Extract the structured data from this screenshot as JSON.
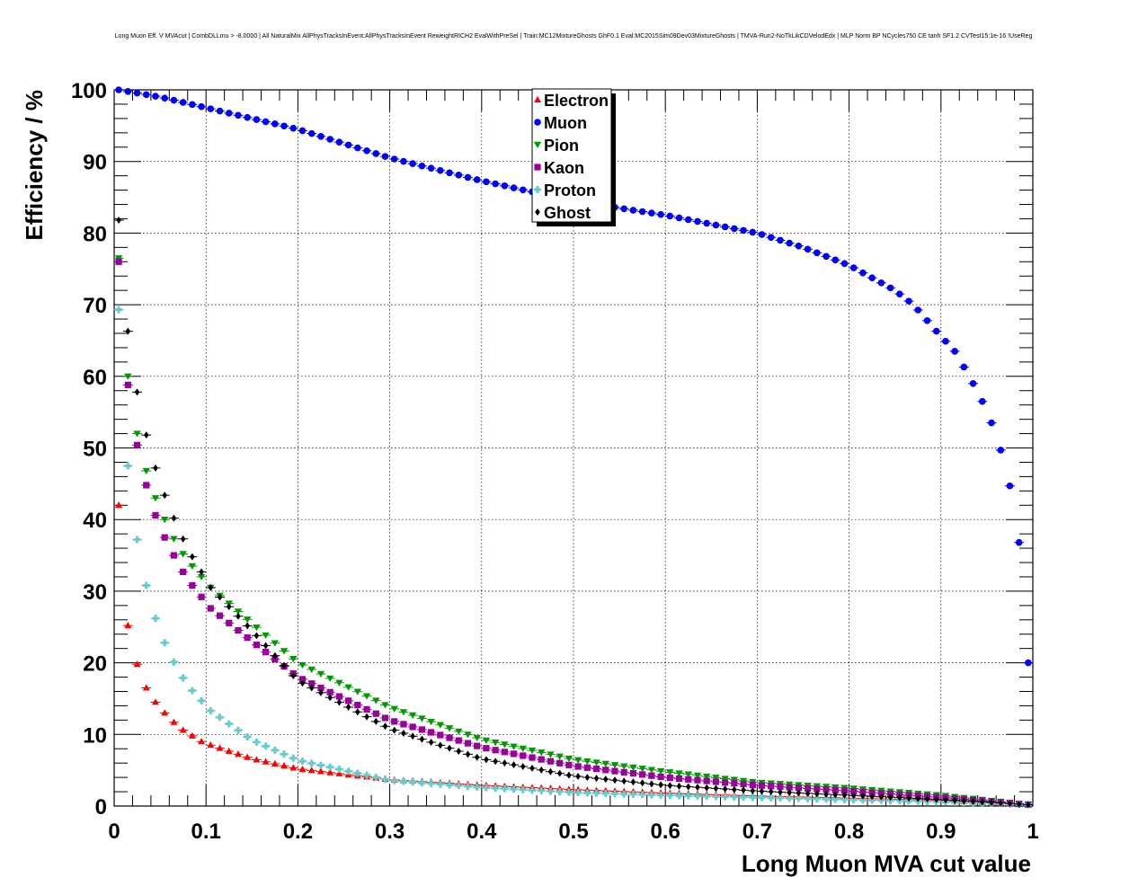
{
  "chart_data": {
    "type": "scatter",
    "title": "Long Muon Eff. V MVAcut | CombDLLmu > -8.0000 | All NaturalMix AllPhysTracksInEvent:AllPhysTracksInEvent ReweightRICH2 EvalWithPreSel | Train:MC12MixtureGhosts GhF0.1 Eval:MC2015Sim09Dev03MixtureGhosts | TMVA-Run2-NoTkLikCDVelodEdx | MLP Norm BP NCycles750 CE tanh SF1.2 CVTest15:1e-16 !UseReg",
    "xlabel": "Long Muon MVA cut value",
    "ylabel": "Efficiency / %",
    "xlim": [
      0,
      1
    ],
    "ylim": [
      0,
      100
    ],
    "x_ticks": [
      "0",
      "0.1",
      "0.2",
      "0.3",
      "0.4",
      "0.5",
      "0.6",
      "0.7",
      "0.8",
      "0.9",
      "1"
    ],
    "y_ticks": [
      "0",
      "10",
      "20",
      "30",
      "40",
      "50",
      "60",
      "70",
      "80",
      "90",
      "100"
    ],
    "grid": true,
    "legend_position": "top-center",
    "x_start": 0.005,
    "x_step": 0.01,
    "n_points": 100,
    "series": [
      {
        "name": "Electron",
        "marker": "triangle-up",
        "color": "#ff0000",
        "anchors": [
          [
            0.005,
            42
          ],
          [
            0.015,
            25.2
          ],
          [
            0.025,
            19.8
          ],
          [
            0.035,
            16.5
          ],
          [
            0.045,
            14.5
          ],
          [
            0.055,
            13
          ],
          [
            0.065,
            11.7
          ],
          [
            0.075,
            10.6
          ],
          [
            0.085,
            9.8
          ],
          [
            0.095,
            9
          ],
          [
            0.105,
            8.5
          ],
          [
            0.15,
            6.6
          ],
          [
            0.2,
            5.2
          ],
          [
            0.3,
            3.7
          ],
          [
            0.4,
            2.9
          ],
          [
            0.5,
            2.3
          ],
          [
            0.6,
            1.8
          ],
          [
            0.7,
            1.4
          ],
          [
            0.8,
            1.1
          ],
          [
            0.9,
            0.8
          ],
          [
            0.995,
            0.2
          ]
        ]
      },
      {
        "name": "Muon",
        "marker": "circle",
        "color": "#0000ff",
        "anchors": [
          [
            0.005,
            100
          ],
          [
            0.05,
            99
          ],
          [
            0.1,
            97.5
          ],
          [
            0.2,
            94.5
          ],
          [
            0.3,
            90.5
          ],
          [
            0.4,
            87.3
          ],
          [
            0.5,
            84.5
          ],
          [
            0.6,
            82.5
          ],
          [
            0.7,
            80
          ],
          [
            0.75,
            78
          ],
          [
            0.8,
            75.5
          ],
          [
            0.85,
            72
          ],
          [
            0.87,
            70
          ],
          [
            0.895,
            66.3
          ],
          [
            0.915,
            63.5
          ],
          [
            0.925,
            61.3
          ],
          [
            0.935,
            59
          ],
          [
            0.945,
            56.5
          ],
          [
            0.955,
            53.5
          ],
          [
            0.965,
            49.7
          ],
          [
            0.975,
            44.7
          ],
          [
            0.985,
            36.8
          ],
          [
            0.995,
            20
          ]
        ]
      },
      {
        "name": "Pion",
        "marker": "triangle-down",
        "color": "#009900",
        "anchors": [
          [
            0.005,
            76.5
          ],
          [
            0.015,
            60
          ],
          [
            0.025,
            52
          ],
          [
            0.035,
            46.8
          ],
          [
            0.045,
            43
          ],
          [
            0.055,
            40
          ],
          [
            0.065,
            37.3
          ],
          [
            0.075,
            35.2
          ],
          [
            0.085,
            33.5
          ],
          [
            0.095,
            32
          ],
          [
            0.105,
            30.5
          ],
          [
            0.15,
            25.5
          ],
          [
            0.2,
            20
          ],
          [
            0.3,
            13.8
          ],
          [
            0.4,
            9.3
          ],
          [
            0.5,
            6.5
          ],
          [
            0.6,
            4.8
          ],
          [
            0.7,
            3.3
          ],
          [
            0.8,
            2.5
          ],
          [
            0.9,
            1.5
          ],
          [
            0.995,
            0.2
          ]
        ]
      },
      {
        "name": "Kaon",
        "marker": "square",
        "color": "#990099",
        "anchors": [
          [
            0.005,
            76
          ],
          [
            0.015,
            58.8
          ],
          [
            0.025,
            50.4
          ],
          [
            0.035,
            44.8
          ],
          [
            0.045,
            40.6
          ],
          [
            0.055,
            37.5
          ],
          [
            0.065,
            35
          ],
          [
            0.075,
            32.7
          ],
          [
            0.085,
            30.8
          ],
          [
            0.095,
            29.2
          ],
          [
            0.105,
            27.6
          ],
          [
            0.15,
            23
          ],
          [
            0.2,
            18
          ],
          [
            0.3,
            12
          ],
          [
            0.4,
            8.2
          ],
          [
            0.5,
            5.6
          ],
          [
            0.6,
            4
          ],
          [
            0.7,
            2.9
          ],
          [
            0.8,
            2.1
          ],
          [
            0.9,
            1.2
          ],
          [
            0.995,
            0.2
          ]
        ]
      },
      {
        "name": "Proton",
        "marker": "cross",
        "color": "#66cccc",
        "anchors": [
          [
            0.005,
            69.3
          ],
          [
            0.015,
            47.5
          ],
          [
            0.025,
            37.2
          ],
          [
            0.035,
            30.8
          ],
          [
            0.045,
            26.2
          ],
          [
            0.055,
            22.8
          ],
          [
            0.065,
            20.1
          ],
          [
            0.075,
            17.9
          ],
          [
            0.085,
            16.1
          ],
          [
            0.095,
            14.7
          ],
          [
            0.105,
            13.3
          ],
          [
            0.15,
            9.2
          ],
          [
            0.2,
            6.4
          ],
          [
            0.3,
            3.6
          ],
          [
            0.4,
            2.6
          ],
          [
            0.5,
            1.9
          ],
          [
            0.6,
            1.5
          ],
          [
            0.7,
            1.2
          ],
          [
            0.8,
            0.9
          ],
          [
            0.9,
            0.6
          ],
          [
            0.995,
            0.2
          ]
        ]
      },
      {
        "name": "Ghost",
        "marker": "diamond",
        "color": "#000000",
        "anchors": [
          [
            0.005,
            81.8
          ],
          [
            0.015,
            66.3
          ],
          [
            0.025,
            57.8
          ],
          [
            0.035,
            51.8
          ],
          [
            0.045,
            47.2
          ],
          [
            0.055,
            43.4
          ],
          [
            0.065,
            40.2
          ],
          [
            0.075,
            37.3
          ],
          [
            0.085,
            34.8
          ],
          [
            0.095,
            32.7
          ],
          [
            0.105,
            30.5
          ],
          [
            0.15,
            24.5
          ],
          [
            0.2,
            17.5
          ],
          [
            0.3,
            10.8
          ],
          [
            0.4,
            6.6
          ],
          [
            0.5,
            4.2
          ],
          [
            0.6,
            2.9
          ],
          [
            0.7,
            2.1
          ],
          [
            0.8,
            1.5
          ],
          [
            0.9,
            0.9
          ],
          [
            0.995,
            0.2
          ]
        ]
      }
    ]
  }
}
